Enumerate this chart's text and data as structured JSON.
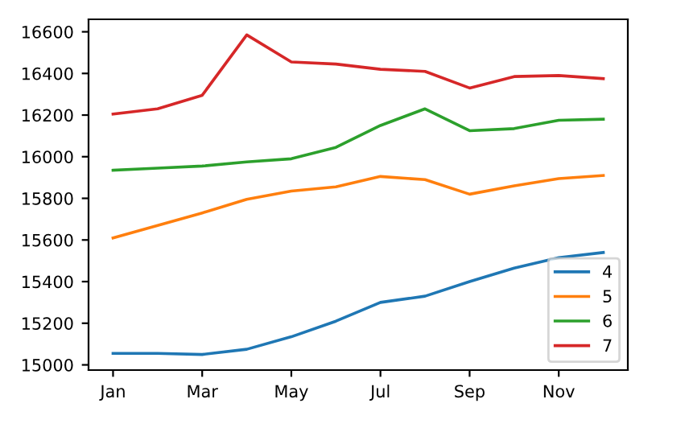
{
  "chart_data": {
    "type": "line",
    "categories": [
      "Jan",
      null,
      "Mar",
      null,
      "May",
      null,
      "Jul",
      null,
      "Sep",
      null,
      "Nov",
      null
    ],
    "series": [
      {
        "name": "4",
        "color": "#1f77b4",
        "values": [
          15055,
          15055,
          15050,
          15075,
          15135,
          15210,
          15300,
          15330,
          15400,
          15465,
          15515,
          15540
        ]
      },
      {
        "name": "5",
        "color": "#ff7f0e",
        "values": [
          15610,
          15670,
          15730,
          15795,
          15835,
          15855,
          15905,
          15890,
          15820,
          15860,
          15895,
          15910
        ]
      },
      {
        "name": "6",
        "color": "#2ca02c",
        "values": [
          15935,
          15945,
          15955,
          15975,
          15990,
          16045,
          16150,
          16230,
          16125,
          16135,
          16175,
          16180
        ]
      },
      {
        "name": "7",
        "color": "#d62728",
        "values": [
          16205,
          16230,
          16295,
          16585,
          16455,
          16445,
          16420,
          16410,
          16330,
          16385,
          16390,
          16375
        ]
      }
    ],
    "ylim": [
      14975,
      16660
    ],
    "yticks": [
      15000,
      15200,
      15400,
      15600,
      15800,
      16000,
      16200,
      16400,
      16600
    ],
    "grid": false,
    "legend": "bottom right"
  }
}
